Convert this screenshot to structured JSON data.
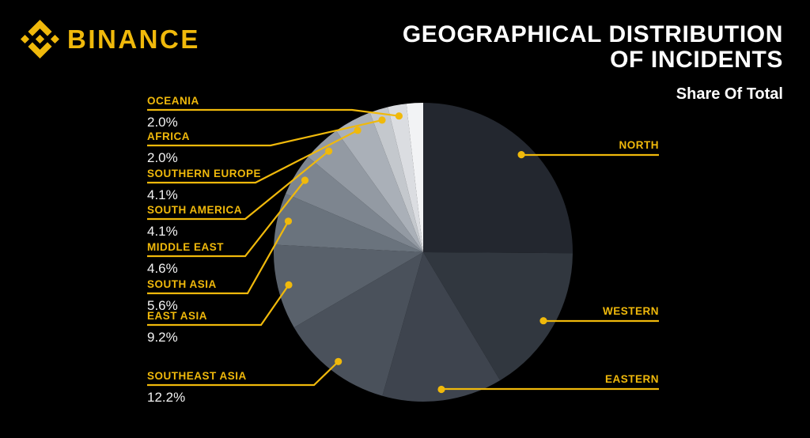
{
  "accent_color": "#F0B90B",
  "background_color": "#000000",
  "brand": {
    "name": "BINANCE",
    "logo_icon": "binance-diamond-icon"
  },
  "header": {
    "title_line1": "GEOGRAPHICAL DISTRIBUTION",
    "title_line2": "OF INCIDENTS",
    "subtitle": "Share Of Total"
  },
  "chart_data": {
    "type": "pie",
    "title": "Geographical Distribution of Incidents",
    "subtitle": "Share Of Total",
    "direction": "clockwise",
    "start_angle_deg": 0,
    "legend_position": "callout-labels",
    "slices": [
      {
        "label": "NORTH",
        "value": 25.1,
        "value_label": null,
        "value_shown": false,
        "estimated": true,
        "color": "#23272f",
        "callout": "right"
      },
      {
        "label": "WESTERN",
        "value": 16.3,
        "value_label": null,
        "value_shown": false,
        "estimated": true,
        "color": "#31373f",
        "callout": "right"
      },
      {
        "label": "EASTERN",
        "value": 13.0,
        "value_label": null,
        "value_shown": false,
        "estimated": true,
        "color": "#3e444e",
        "callout": "right"
      },
      {
        "label": "SOUTHEAST ASIA",
        "value": 12.2,
        "value_label": "12.2%",
        "value_shown": true,
        "estimated": false,
        "color": "#4a515b",
        "callout": "left"
      },
      {
        "label": "EAST ASIA",
        "value": 9.2,
        "value_label": "9.2%",
        "value_shown": true,
        "estimated": false,
        "color": "#59616b",
        "callout": "left"
      },
      {
        "label": "SOUTH ASIA",
        "value": 5.6,
        "value_label": "5.6%",
        "value_shown": true,
        "estimated": false,
        "color": "#6a737d",
        "callout": "left"
      },
      {
        "label": "MIDDLE EAST",
        "value": 4.6,
        "value_label": "4.6%",
        "value_shown": true,
        "estimated": false,
        "color": "#7d858f",
        "callout": "left"
      },
      {
        "label": "SOUTH AMERICA",
        "value": 4.1,
        "value_label": "4.1%",
        "value_shown": true,
        "estimated": false,
        "color": "#939aa3",
        "callout": "left"
      },
      {
        "label": "SOUTHERN EUROPE",
        "value": 4.1,
        "value_label": "4.1%",
        "value_shown": true,
        "estimated": false,
        "color": "#aab0b8",
        "callout": "left"
      },
      {
        "label": "AFRICA",
        "value": 2.0,
        "value_label": "2.0%",
        "value_shown": true,
        "estimated": false,
        "color": "#c4c8cd",
        "callout": "left"
      },
      {
        "label": "OCEANIA",
        "value": 2.0,
        "value_label": "2.0%",
        "value_shown": true,
        "estimated": false,
        "color": "#dbdde1",
        "callout": "left"
      },
      {
        "label": "",
        "value": 1.8,
        "value_label": null,
        "value_shown": false,
        "estimated": true,
        "color": "#f2f3f5",
        "callout": null
      }
    ]
  }
}
